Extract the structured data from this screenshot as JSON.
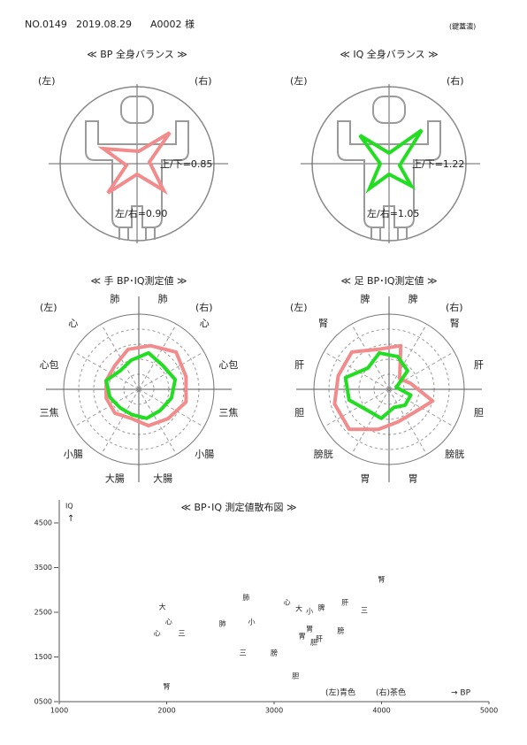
{
  "header": {
    "number": "NO.0149",
    "date": "2019.08.29",
    "customer": "A0002 様",
    "note": "(鍵蓋濃)"
  },
  "balance": [
    {
      "title": "≪ BP 全身バランス ≫",
      "left": "(左)",
      "right": "(右)",
      "up_down": "上/下=0.85",
      "left_right": "左/右=0.90",
      "color": "#f28b8b"
    },
    {
      "title": "≪ IQ 全身バランス ≫",
      "left": "(左)",
      "right": "(右)",
      "up_down": "上/下=1.22",
      "left_right": "左/右=1.05",
      "color": "#22dd22"
    }
  ],
  "chart_data": [
    {
      "type": "radar",
      "title": "≪ 手 BP･IQ測定値 ≫",
      "left": "(左)",
      "right": "(右)",
      "categories": [
        "肺",
        "心",
        "心包",
        "三焦",
        "小腸",
        "大腸",
        "大腸",
        "小腸",
        "三焦",
        "心包",
        "心",
        "肺"
      ],
      "category_colors": [
        "#1a1aa6",
        "#1a1aa6",
        "#8b1a1a",
        "#8b1a1a",
        "#8b1a1a",
        "#8b1a1a",
        "#8b1a1a",
        "#1a1aa6",
        "#8b1a1a",
        "#1a1aa6",
        "#1a1aa6",
        "#1a1aa6"
      ],
      "rlim": [
        0,
        100
      ],
      "series": [
        {
          "color": "#f28b8b",
          "values": [
            60,
            70,
            65,
            65,
            55,
            50,
            40,
            45,
            45,
            45,
            45,
            55
          ]
        },
        {
          "color": "#22dd22",
          "values": [
            50,
            45,
            50,
            45,
            40,
            40,
            35,
            35,
            40,
            45,
            35,
            40
          ]
        }
      ]
    },
    {
      "type": "radar",
      "title": "≪ 足 BP･IQ測定値 ≫",
      "left": "(左)",
      "right": "(右)",
      "categories": [
        "脾",
        "腎",
        "肝",
        "胆",
        "膀胱",
        "胃",
        "胃",
        "膀胱",
        "胆",
        "肝",
        "腎",
        "脾"
      ],
      "category_colors": [
        "#1a1aa6",
        "#1a1aa6",
        "#1a1aa6",
        "#8b1a1a",
        "#8b1a1a",
        "#8b1a1a",
        "#8b1a1a",
        "#8b1a1a",
        "#8b1a1a",
        "#1a1aa6",
        "#1a1aa6",
        "#1a1aa6"
      ],
      "rlim": [
        0,
        100
      ],
      "series": [
        {
          "color": "#f28b8b",
          "values": [
            60,
            20,
            30,
            60,
            45,
            45,
            55,
            75,
            75,
            70,
            70,
            55
          ]
        },
        {
          "color": "#22dd22",
          "values": [
            45,
            35,
            10,
            30,
            30,
            25,
            40,
            40,
            55,
            60,
            40,
            50
          ]
        }
      ]
    },
    {
      "type": "scatter",
      "title": "≪ BP･IQ 測定値散布図 ≫",
      "y_label": "IQ",
      "y_arrow": "↑",
      "x_label": "→ BP",
      "xlim": [
        1000,
        5000
      ],
      "ylim": [
        500,
        4500
      ],
      "xticks": [
        1000,
        2000,
        3000,
        4000,
        5000
      ],
      "yticks": [
        {
          "value": 500,
          "label": "0500"
        },
        1500,
        2500,
        3500,
        4500
      ],
      "series": [
        {
          "name": "(左)青色",
          "color": "#1a1aa6",
          "labels": [
            "大",
            "心",
            "心",
            "三",
            "肺",
            "小",
            "膀",
            "胃",
            "胆",
            "肝",
            "膀",
            "腎"
          ],
          "x": [
            1960,
            2020,
            1910,
            2140,
            2520,
            2790,
            3000,
            3260,
            3370,
            3660,
            3620,
            4000
          ],
          "y": [
            2620,
            2280,
            2020,
            2020,
            2240,
            2280,
            1590,
            1970,
            1830,
            2720,
            2080,
            3230
          ]
        },
        {
          "name": "(右)茶色",
          "color": "#8b1a1a",
          "labels": [
            "肺",
            "三",
            "心",
            "大",
            "小",
            "脾",
            "胃",
            "肝",
            "三",
            "胆",
            "腎"
          ],
          "x": [
            2740,
            2710,
            3120,
            3230,
            3330,
            3440,
            3330,
            3420,
            3840,
            3200,
            2000
          ],
          "y": [
            2830,
            1590,
            2720,
            2580,
            2520,
            2600,
            2120,
            1910,
            2540,
            1070,
            840
          ]
        }
      ]
    }
  ]
}
